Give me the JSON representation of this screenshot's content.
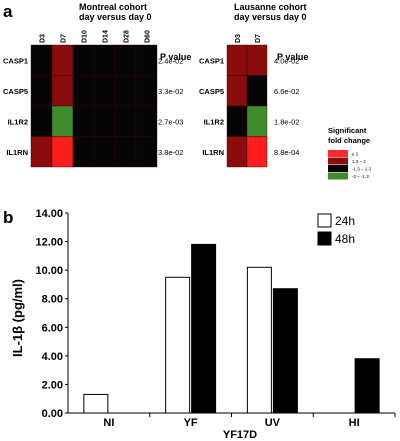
{
  "chart_data": [
    {
      "type": "heatmap",
      "panel_label": "a",
      "title": "Montreal cohort",
      "subtitle": "day versus day 0",
      "columns": [
        "D3",
        "D7",
        "D10",
        "D14",
        "D28",
        "D60"
      ],
      "rows": [
        "CASP1",
        "CASP5",
        "IL1R2",
        "IL1RN"
      ],
      "pvalue_header": "P value",
      "pvalues": [
        "2.4e-02",
        "3.3e-02",
        "2.7e-03",
        "3.8e-02"
      ],
      "fold_change": [
        [
          0,
          1.8,
          0,
          0,
          0,
          0
        ],
        [
          0,
          1.8,
          0,
          0,
          0,
          0
        ],
        [
          0,
          -1.8,
          0,
          0,
          0,
          0
        ],
        [
          1.5,
          2.5,
          1.2,
          0,
          1.2,
          0
        ]
      ]
    },
    {
      "type": "heatmap",
      "title": "Lausanne cohort",
      "subtitle": "day versus day 0",
      "columns": [
        "D3",
        "D7"
      ],
      "rows": [
        "CASP1",
        "CASP5",
        "IL1R2",
        "IL1RN"
      ],
      "pvalue_header": "P value",
      "pvalues": [
        "4.0e-02",
        "6.6e-02",
        "1.8e-02",
        "8.8e-04"
      ],
      "fold_change": [
        [
          1.8,
          1.8
        ],
        [
          1.8,
          0
        ],
        [
          0,
          -1.8
        ],
        [
          1.8,
          3
        ]
      ],
      "legend": {
        "title_lines": [
          "Significant",
          "fold change"
        ],
        "items": [
          {
            "label": "≥ 2",
            "color": "#ff2a2a"
          },
          {
            "label": "1.3 – 2",
            "color": "#8c0d0d"
          },
          {
            "label": "-1.3 – 1.3",
            "color": "#050505"
          },
          {
            "label": "-2 – -1.3",
            "color": "#3f8c2c"
          }
        ]
      }
    },
    {
      "type": "bar",
      "panel_label": "b",
      "categories": [
        "NI",
        "YF",
        "UV",
        "HI"
      ],
      "series": [
        {
          "name": "24h",
          "values": [
            1.3,
            9.5,
            10.2,
            null
          ],
          "color": "#ffffff"
        },
        {
          "name": "48h",
          "values": [
            null,
            11.8,
            8.7,
            3.8
          ],
          "color": "#000000"
        }
      ],
      "xlabel": "YF17D",
      "ylabel": "IL-1β (pg/ml)",
      "ylim": [
        0,
        14
      ],
      "yticks": [
        "0.00",
        "2.00",
        "4.00",
        "6.00",
        "8.00",
        "10.00",
        "12.00",
        "14.00"
      ],
      "legend_position": "top-right"
    }
  ]
}
